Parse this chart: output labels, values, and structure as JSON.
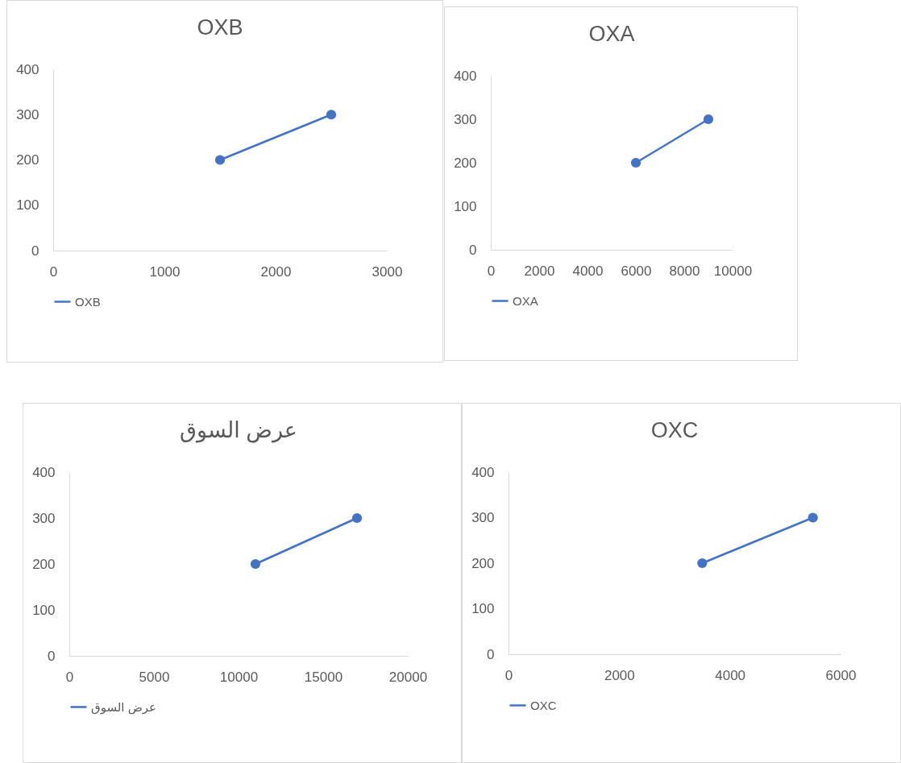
{
  "chart_data": [
    {
      "type": "line",
      "title": "OXB",
      "x": [
        1500,
        2500
      ],
      "series": [
        {
          "name": "OXB",
          "color": "#4472c4",
          "values": [
            200,
            300
          ]
        }
      ],
      "xlim": [
        0,
        3000
      ],
      "xticks": [
        0,
        1000,
        2000,
        3000
      ],
      "ylim": [
        0,
        400
      ],
      "yticks": [
        0,
        100,
        200,
        300,
        400
      ],
      "legend": "bottom",
      "marker": "circle"
    },
    {
      "type": "line",
      "title": "OXA",
      "x": [
        6000,
        9000
      ],
      "series": [
        {
          "name": "OXA",
          "color": "#4472c4",
          "values": [
            200,
            300
          ]
        }
      ],
      "xlim": [
        0,
        10000
      ],
      "xticks": [
        0,
        2000,
        4000,
        6000,
        8000,
        10000
      ],
      "ylim": [
        0,
        400
      ],
      "yticks": [
        0,
        100,
        200,
        300,
        400
      ],
      "legend": "bottom",
      "marker": "circle"
    },
    {
      "type": "line",
      "title": "عرض السوق",
      "x": [
        11000,
        17000
      ],
      "series": [
        {
          "name": "عرض السوق",
          "color": "#4472c4",
          "values": [
            200,
            300
          ]
        }
      ],
      "xlim": [
        0,
        20000
      ],
      "xticks": [
        0,
        5000,
        10000,
        15000,
        20000
      ],
      "ylim": [
        0,
        400
      ],
      "yticks": [
        0,
        100,
        200,
        300,
        400
      ],
      "legend": "bottom",
      "marker": "circle"
    },
    {
      "type": "line",
      "title": "OXC",
      "x": [
        3500,
        5500
      ],
      "series": [
        {
          "name": "OXC",
          "color": "#4472c4",
          "values": [
            200,
            300
          ]
        }
      ],
      "xlim": [
        0,
        6000
      ],
      "xticks": [
        0,
        2000,
        4000,
        6000
      ],
      "ylim": [
        0,
        400
      ],
      "yticks": [
        0,
        100,
        200,
        300,
        400
      ],
      "legend": "bottom",
      "marker": "circle"
    }
  ]
}
